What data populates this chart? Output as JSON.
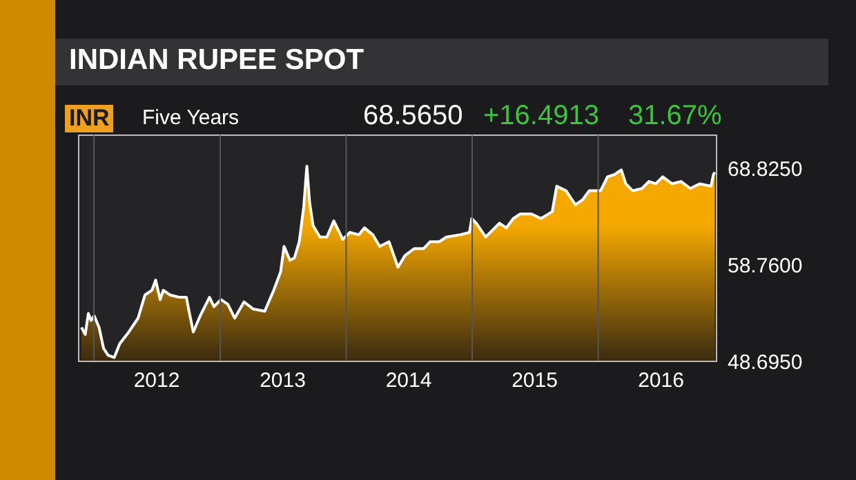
{
  "chart_data": {
    "type": "area",
    "title": "INDIAN RUPEE SPOT",
    "annotations": [
      "INR",
      "Five Years",
      "68.5650",
      "+16.4913",
      "31.67%"
    ],
    "x": [
      "2011-11-26",
      "2011-12-07",
      "2011-12-16",
      "2011-12-24",
      "2012-01-02",
      "2012-01-16",
      "2012-01-29",
      "2012-02-11",
      "2012-02-29",
      "2012-03-16",
      "2012-04-11",
      "2012-05-08",
      "2012-05-28",
      "2012-06-17",
      "2012-06-28",
      "2012-07-11",
      "2012-07-20",
      "2012-08-09",
      "2012-09-05",
      "2012-09-25",
      "2012-10-04",
      "2012-10-15",
      "2012-11-04",
      "2012-12-01",
      "2012-12-14",
      "2013-01-03",
      "2013-01-23",
      "2013-02-12",
      "2013-03-11",
      "2013-04-06",
      "2013-05-10",
      "2013-06-05",
      "2013-06-25",
      "2013-07-05",
      "2013-07-22",
      "2013-08-04",
      "2013-08-18",
      "2013-08-31",
      "2013-09-09",
      "2013-09-17",
      "2013-09-27",
      "2013-10-17",
      "2013-11-06",
      "2013-11-26",
      "2013-12-22",
      "2014-01-11",
      "2014-02-07",
      "2014-02-23",
      "2014-03-19",
      "2014-04-08",
      "2014-05-05",
      "2014-05-31",
      "2014-06-20",
      "2014-07-17",
      "2014-08-13",
      "2014-09-01",
      "2014-09-28",
      "2014-10-18",
      "2014-11-27",
      "2014-12-24",
      "2014-12-31",
      "2015-01-13",
      "2015-02-09",
      "2015-03-01",
      "2015-03-21",
      "2015-04-10",
      "2015-04-30",
      "2015-05-20",
      "2015-06-22",
      "2015-07-19",
      "2015-08-21",
      "2015-09-03",
      "2015-09-30",
      "2015-10-27",
      "2015-11-16",
      "2015-12-06",
      "2016-01-08",
      "2016-01-28",
      "2016-02-17",
      "2016-03-08",
      "2016-03-21",
      "2016-04-10",
      "2016-05-07",
      "2016-05-27",
      "2016-06-16",
      "2016-07-06",
      "2016-08-02",
      "2016-08-28",
      "2016-09-24",
      "2016-10-21",
      "2016-11-23",
      "2016-11-30",
      "2016-12-04"
    ],
    "series": [
      {
        "color": "#f5a800",
        "values": [
          52.24,
          51.51,
          53.69,
          52.96,
          53.45,
          52.24,
          50.06,
          49.34,
          49.1,
          50.55,
          51.76,
          53.21,
          55.62,
          56.11,
          57.17,
          55.14,
          56.11,
          55.62,
          55.38,
          55.38,
          53.69,
          51.76,
          53.45,
          55.38,
          54.41,
          55.14,
          54.66,
          53.21,
          54.9,
          54.17,
          53.93,
          56.11,
          58.04,
          60.7,
          59.25,
          59.49,
          61.18,
          64.81,
          69.06,
          65.29,
          62.87,
          61.67,
          61.67,
          63.36,
          61.42,
          62.15,
          61.91,
          62.63,
          61.91,
          60.7,
          61.18,
          58.52,
          59.73,
          60.46,
          60.46,
          61.18,
          61.18,
          61.67,
          61.91,
          62.15,
          63.6,
          63.12,
          61.67,
          62.39,
          63.12,
          62.63,
          63.6,
          64.08,
          64.08,
          63.6,
          64.32,
          66.98,
          66.5,
          65.05,
          65.53,
          66.5,
          66.5,
          67.95,
          68.19,
          68.68,
          67.23,
          66.5,
          66.74,
          67.47,
          67.23,
          67.95,
          67.23,
          67.47,
          66.74,
          67.23,
          66.98,
          68.19,
          68.43
        ]
      }
    ],
    "xlim": [
      "2011-11-18",
      "2016-12-09"
    ],
    "xticks": [
      {
        "value": "2012-01-01",
        "label": null
      },
      {
        "value": "2012-07-01",
        "label": "2012"
      },
      {
        "value": "2013-01-01",
        "label": null
      },
      {
        "value": "2013-07-01",
        "label": "2013"
      },
      {
        "value": "2014-01-01",
        "label": null
      },
      {
        "value": "2014-07-01",
        "label": "2014"
      },
      {
        "value": "2015-01-01",
        "label": null
      },
      {
        "value": "2015-07-01",
        "label": "2015"
      },
      {
        "value": "2016-01-01",
        "label": null
      },
      {
        "value": "2016-07-01",
        "label": "2016"
      }
    ],
    "ylim": [
      48.695,
      72.3
    ],
    "yticks": [
      {
        "value": 48.695,
        "label": "48.6950"
      },
      {
        "value": 58.76,
        "label": "58.7600"
      },
      {
        "value": 68.825,
        "label": "68.8250"
      }
    ],
    "grid": true
  }
}
